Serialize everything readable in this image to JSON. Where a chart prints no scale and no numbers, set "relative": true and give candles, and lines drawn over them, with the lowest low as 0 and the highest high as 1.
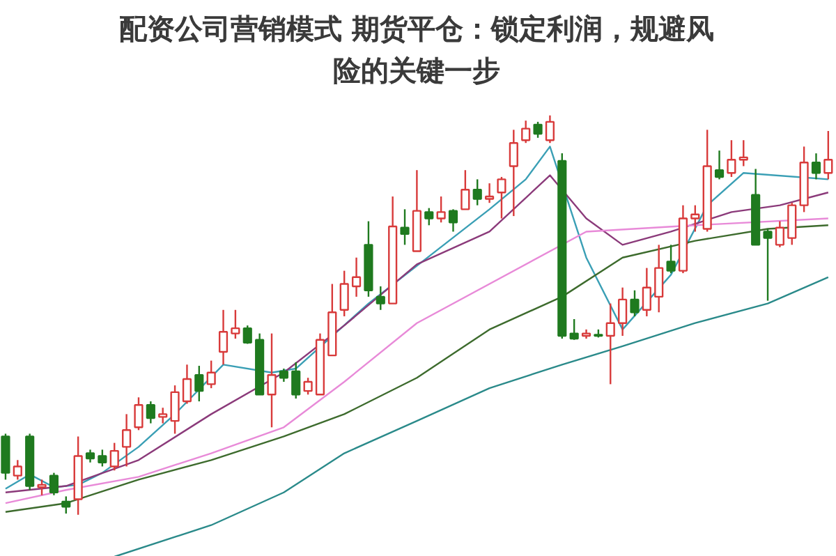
{
  "chart_data": {
    "type": "candlestick",
    "title": "配资公司营销模式 期货平仓：锁定利润，规避风险的关键一步",
    "relative": true,
    "categories": [
      null,
      null,
      null,
      null,
      null,
      null,
      null,
      null,
      null,
      null,
      null,
      null,
      null,
      null,
      null,
      null,
      null,
      null,
      null,
      null,
      null,
      null,
      null,
      null,
      null,
      null,
      null,
      null,
      null,
      null,
      null,
      null,
      null,
      null,
      null,
      null,
      null,
      null,
      null,
      null,
      null,
      null,
      null,
      null,
      null,
      null,
      null,
      null,
      null,
      null,
      null,
      null,
      null,
      null,
      null,
      null,
      null,
      null,
      null,
      null,
      null,
      null,
      null,
      null,
      null,
      null,
      null,
      null,
      null
    ],
    "ohlc": [
      [
        0.196,
        0.203,
        0.088,
        0.105
      ],
      [
        0.098,
        0.137,
        0.088,
        0.121
      ],
      [
        0.196,
        0.203,
        0.062,
        0.072
      ],
      [
        0.069,
        0.088,
        0.049,
        0.075
      ],
      [
        0.098,
        0.105,
        0.049,
        0.056
      ],
      [
        0.033,
        0.046,
        0.003,
        0.02
      ],
      [
        0.039,
        0.196,
        0,
        0.147
      ],
      [
        0.154,
        0.163,
        0.131,
        0.141
      ],
      [
        0.147,
        0.163,
        0.121,
        0.131
      ],
      [
        0.121,
        0.18,
        0.111,
        0.16
      ],
      [
        0.17,
        0.252,
        0.121,
        0.212
      ],
      [
        0.219,
        0.294,
        0.212,
        0.275
      ],
      [
        0.275,
        0.284,
        0.229,
        0.242
      ],
      [
        0.245,
        0.268,
        0.229,
        0.252
      ],
      [
        0.235,
        0.324,
        0.203,
        0.307
      ],
      [
        0.284,
        0.376,
        0.278,
        0.34
      ],
      [
        0.35,
        0.373,
        0.284,
        0.31
      ],
      [
        0.327,
        0.386,
        0.317,
        0.356
      ],
      [
        0.408,
        0.513,
        0.376,
        0.458
      ],
      [
        0.454,
        0.513,
        0.441,
        0.467
      ],
      [
        0.467,
        0.474,
        0.428,
        0.431
      ],
      [
        0.438,
        0.454,
        0.301,
        0.301
      ],
      [
        0.301,
        0.454,
        0.219,
        0.35
      ],
      [
        0.359,
        0.366,
        0.333,
        0.343
      ],
      [
        0.359,
        0.382,
        0.291,
        0.301
      ],
      [
        0.31,
        0.343,
        0.301,
        0.333
      ],
      [
        0.301,
        0.454,
        0.301,
        0.438
      ],
      [
        0.399,
        0.578,
        0.399,
        0.507
      ],
      [
        0.513,
        0.611,
        0.497,
        0.578
      ],
      [
        0.572,
        0.644,
        0.546,
        0.595
      ],
      [
        0.676,
        0.735,
        0.546,
        0.562
      ],
      [
        0.546,
        0.572,
        0.513,
        0.529
      ],
      [
        0.529,
        0.797,
        0.529,
        0.722
      ],
      [
        0.719,
        0.765,
        0.676,
        0.703
      ],
      [
        0.66,
        0.863,
        0.66,
        0.761
      ],
      [
        0.758,
        0.768,
        0.725,
        0.742
      ],
      [
        0.742,
        0.797,
        0.732,
        0.758
      ],
      [
        0.761,
        0.765,
        0.709,
        0.732
      ],
      [
        0.765,
        0.863,
        0.765,
        0.814
      ],
      [
        0.814,
        0.84,
        0.775,
        0.791
      ],
      [
        0.791,
        0.83,
        0.781,
        0.797
      ],
      [
        0.807,
        0.846,
        0.742,
        0.84
      ],
      [
        0.873,
        0.964,
        0.748,
        0.931
      ],
      [
        0.938,
        0.987,
        0.931,
        0.967
      ],
      [
        0.977,
        0.984,
        0.944,
        0.954
      ],
      [
        0.938,
        1,
        0.931,
        0.984
      ],
      [
        0.886,
        0.905,
        0.441,
        0.448
      ],
      [
        0.454,
        0.49,
        0.438,
        0.441
      ],
      [
        0.448,
        0.464,
        0.441,
        0.454
      ],
      [
        0.451,
        0.464,
        0.444,
        0.448
      ],
      [
        0.448,
        0.529,
        0.327,
        0.48
      ],
      [
        0.48,
        0.569,
        0.448,
        0.539
      ],
      [
        0.539,
        0.562,
        0.497,
        0.507
      ],
      [
        0.513,
        0.618,
        0.497,
        0.569
      ],
      [
        0.546,
        0.676,
        0.507,
        0.618
      ],
      [
        0.634,
        0.676,
        0.605,
        0.611
      ],
      [
        0.611,
        0.775,
        0.605,
        0.742
      ],
      [
        0.742,
        0.775,
        0.709,
        0.752
      ],
      [
        0.716,
        0.964,
        0.709,
        0.873
      ],
      [
        0.863,
        0.912,
        0.84,
        0.846
      ],
      [
        0.856,
        0.938,
        0.846,
        0.889
      ],
      [
        0.889,
        0.938,
        0.873,
        0.895
      ],
      [
        0.801,
        0.866,
        0.676,
        0.676
      ],
      [
        0.709,
        0.716,
        0.536,
        0.693
      ],
      [
        0.676,
        0.735,
        0.67,
        0.719
      ],
      [
        0.693,
        0.781,
        0.676,
        0.775
      ],
      [
        0.775,
        0.922,
        0.758,
        0.882
      ],
      [
        0.882,
        0.905,
        0.84,
        0.856
      ],
      [
        0.856,
        0.961,
        0.84,
        0.889
      ]
    ],
    "colors": [
      "#1f7a1f",
      "#d83a3a",
      "#1f7a1f",
      "#d83a3a",
      "#1f7a1f",
      "#1f7a1f",
      "#d83a3a",
      "#1f7a1f",
      "#1f7a1f",
      "#d83a3a",
      "#d83a3a",
      "#d83a3a",
      "#1f7a1f",
      "#d83a3a",
      "#d83a3a",
      "#d83a3a",
      "#1f7a1f",
      "#d83a3a",
      "#d83a3a",
      "#d83a3a",
      "#1f7a1f",
      "#1f7a1f",
      "#d83a3a",
      "#1f7a1f",
      "#1f7a1f",
      "#d83a3a",
      "#d83a3a",
      "#d83a3a",
      "#d83a3a",
      "#d83a3a",
      "#1f7a1f",
      "#1f7a1f",
      "#d83a3a",
      "#1f7a1f",
      "#d83a3a",
      "#1f7a1f",
      "#d83a3a",
      "#1f7a1f",
      "#d83a3a",
      "#1f7a1f",
      "#d83a3a",
      "#d83a3a",
      "#d83a3a",
      "#d83a3a",
      "#1f7a1f",
      "#d83a3a",
      "#1f7a1f",
      "#1f7a1f",
      "#d83a3a",
      "#1f7a1f",
      "#d83a3a",
      "#d83a3a",
      "#1f7a1f",
      "#d83a3a",
      "#d83a3a",
      "#1f7a1f",
      "#d83a3a",
      "#d83a3a",
      "#d83a3a",
      "#1f7a1f",
      "#d83a3a",
      "#d83a3a",
      "#1f7a1f",
      "#1f7a1f",
      "#d83a3a",
      "#d83a3a",
      "#d83a3a",
      "#1f7a1f",
      "#d83a3a"
    ],
    "series": [
      {
        "type": "line",
        "color": "#3a9fb5",
        "values": [
          0.065,
          null,
          0.101,
          null,
          0.069,
          null,
          0.075,
          null,
          0.105,
          null,
          null,
          0.17,
          null,
          null,
          0.252,
          null,
          null,
          null,
          0.376,
          null,
          null,
          null,
          0.356,
          null,
          0.366,
          null,
          null,
          null,
          null,
          null,
          0.529,
          null,
          null,
          null,
          null,
          null,
          null,
          null,
          null,
          null,
          0.765,
          null,
          null,
          0.84,
          null,
          0.922,
          null,
          null,
          0.644,
          null,
          null,
          0.464,
          null,
          null,
          null,
          0.601,
          null,
          null,
          0.775,
          null,
          null,
          0.856,
          null,
          null,
          null,
          null,
          null,
          null,
          0.84
        ]
      },
      {
        "type": "line",
        "color": "#8b3a7a",
        "values": [
          0.056,
          null,
          null,
          null,
          null,
          0.072,
          null,
          null,
          null,
          null,
          null,
          0.137,
          null,
          null,
          null,
          null,
          null,
          0.252,
          null,
          null,
          null,
          null,
          null,
          0.356,
          null,
          null,
          null,
          null,
          0.474,
          null,
          null,
          null,
          null,
          null,
          0.627,
          null,
          null,
          null,
          null,
          null,
          0.709,
          null,
          null,
          null,
          null,
          0.85,
          null,
          null,
          0.742,
          null,
          null,
          0.676,
          null,
          null,
          null,
          0.709,
          null,
          null,
          null,
          null,
          0.758,
          null,
          null,
          null,
          0.775,
          null,
          null,
          null,
          0.807
        ]
      },
      {
        "type": "line",
        "color": "#e88ad8",
        "values": [
          0.029,
          null,
          null,
          null,
          null,
          0.062,
          null,
          null,
          null,
          null,
          null,
          0.095,
          null,
          null,
          null,
          null,
          null,
          0.154,
          null,
          null,
          null,
          null,
          null,
          0.219,
          null,
          null,
          null,
          null,
          0.333,
          null,
          null,
          null,
          null,
          null,
          0.48,
          null,
          null,
          null,
          null,
          null,
          null,
          null,
          null,
          null,
          null,
          null,
          null,
          null,
          0.709,
          null,
          null,
          null,
          null,
          null,
          null,
          null,
          null,
          0.725,
          null,
          null,
          null,
          null,
          null,
          null,
          null,
          null,
          null,
          null,
          0.742
        ]
      },
      {
        "type": "line",
        "color": "#3d6b2d",
        "values": [
          0.007,
          null,
          null,
          null,
          null,
          0.029,
          null,
          null,
          null,
          null,
          null,
          0.088,
          null,
          null,
          null,
          null,
          null,
          0.137,
          null,
          null,
          null,
          null,
          null,
          0.196,
          null,
          null,
          null,
          null,
          0.252,
          null,
          null,
          null,
          null,
          null,
          0.343,
          null,
          null,
          null,
          null,
          null,
          0.464,
          null,
          null,
          null,
          null,
          null,
          0.546,
          null,
          null,
          null,
          null,
          0.644,
          null,
          null,
          null,
          null,
          null,
          0.686,
          null,
          null,
          null,
          null,
          null,
          0.716,
          null,
          null,
          null,
          null,
          0.725
        ]
      },
      {
        "type": "line",
        "color": "#2a8a8a",
        "values": [
          null,
          null,
          null,
          null,
          null,
          null,
          null,
          null,
          null,
          -0.105,
          null,
          null,
          null,
          null,
          null,
          null,
          null,
          -0.026,
          null,
          null,
          null,
          null,
          null,
          0.056,
          null,
          null,
          null,
          null,
          0.154,
          null,
          null,
          null,
          null,
          null,
          0.235,
          null,
          null,
          null,
          null,
          null,
          0.317,
          null,
          null,
          null,
          null,
          null,
          0.376,
          null,
          null,
          null,
          null,
          0.422,
          null,
          null,
          null,
          null,
          null,
          0.48,
          null,
          null,
          null,
          null,
          null,
          0.529,
          null,
          null,
          null,
          null,
          0.595
        ]
      }
    ]
  }
}
